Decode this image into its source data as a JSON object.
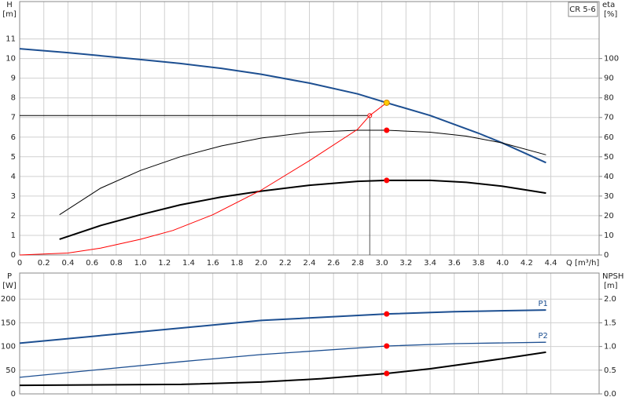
{
  "chart_data": [
    {
      "type": "line",
      "y_label": "H",
      "y_unit": "[m]",
      "y2_label": "eta",
      "y2_unit": "[%]",
      "x_label": "Q [m³/h]",
      "model": "CR 5-6",
      "xlim": [
        0,
        4.8
      ],
      "ylim": [
        0,
        12.9
      ],
      "y2lim": [
        0,
        129
      ],
      "xticks": [
        0,
        0.2,
        0.4,
        0.6,
        0.8,
        {
          "value": 1,
          "label": "1.0"
        },
        1.2,
        1.4,
        1.6,
        1.8,
        {
          "value": 2,
          "label": "2.0"
        },
        2.2,
        2.4,
        2.6,
        2.8,
        {
          "value": 3,
          "label": "3.0"
        },
        3.2,
        3.4,
        3.6,
        3.8,
        {
          "value": 4,
          "label": "4.0"
        },
        4.2,
        4.4
      ],
      "show_xtick_labels": true,
      "yticks": [
        0,
        1,
        2,
        3,
        4,
        5,
        6,
        7,
        8,
        9,
        10,
        11
      ],
      "y2ticks": [
        0,
        10,
        20,
        30,
        40,
        50,
        60,
        70,
        80,
        90,
        100
      ],
      "grid": true,
      "series": [
        {
          "color": "#1d4f91",
          "width": 2,
          "x": [
            0,
            0.4,
            1.0,
            1.33,
            1.67,
            2.0,
            2.4,
            2.8,
            3.04,
            3.4,
            3.8,
            4.0,
            4.36
          ],
          "values": [
            10.5,
            10.3,
            9.95,
            9.75,
            9.5,
            9.2,
            8.75,
            8.2,
            7.75,
            7.1,
            6.2,
            5.7,
            4.7
          ]
        },
        {
          "color": "#000000",
          "width": 1,
          "axis": "y2",
          "x": [
            0.33,
            0.67,
            1.0,
            1.33,
            1.67,
            2.0,
            2.4,
            2.8,
            3.04,
            3.4,
            3.7,
            4.0,
            4.36
          ],
          "values": [
            20.5,
            34,
            43,
            50,
            55.5,
            59.5,
            62.5,
            63.5,
            63.5,
            62.5,
            60.5,
            57,
            51
          ]
        },
        {
          "color": "#000000",
          "width": 2,
          "axis": "y2",
          "x": [
            0.33,
            0.67,
            1.0,
            1.33,
            1.67,
            2.0,
            2.4,
            2.8,
            3.04,
            3.4,
            3.7,
            4.0,
            4.36
          ],
          "values": [
            8,
            15,
            20.5,
            25.5,
            29.5,
            32.5,
            35.5,
            37.5,
            38,
            38,
            37,
            35,
            31.5
          ]
        },
        {
          "color": "#ff0000",
          "width": 1,
          "x": [
            0,
            0.4,
            0.67,
            1.0,
            1.27,
            1.6,
            2.0,
            2.4,
            2.8,
            2.9,
            3.04
          ],
          "values": [
            0,
            0.1,
            0.35,
            0.8,
            1.25,
            2.05,
            3.3,
            4.8,
            6.4,
            7.1,
            7.75
          ]
        }
      ],
      "duty_point": {
        "x": 2.9,
        "value": 7.1
      },
      "points": [
        {
          "x": 3.04,
          "value": 7.75,
          "color": "#ffcc00"
        },
        {
          "x": 3.04,
          "value": 63.5,
          "axis": "y2",
          "color": "#ff0000"
        },
        {
          "x": 3.04,
          "value": 38,
          "axis": "y2",
          "color": "#ff0000"
        }
      ]
    },
    {
      "type": "line",
      "y_label": "P",
      "y_unit": "[W]",
      "y2_label": "NPSH",
      "y2_unit": "[m]",
      "xlim": [
        0,
        4.8
      ],
      "ylim": [
        0,
        255
      ],
      "y2lim": [
        0,
        2.55
      ],
      "xticks": [
        0,
        0.2,
        0.4,
        0.6,
        0.8,
        1,
        1.2,
        1.4,
        1.6,
        1.8,
        2,
        2.2,
        2.4,
        2.6,
        2.8,
        3,
        3.2,
        3.4,
        3.6,
        3.8,
        4,
        4.2,
        4.4
      ],
      "show_xtick_labels": false,
      "yticks": [
        0,
        50,
        100,
        150,
        200
      ],
      "y2ticks": [
        {
          "value": 0,
          "label": "0.0"
        },
        0.5,
        {
          "value": 1,
          "label": "1.0"
        },
        1.5,
        {
          "value": 2,
          "label": "2.0"
        }
      ],
      "grid": true,
      "series": [
        {
          "name": "P1",
          "color": "#1d4f91",
          "width": 2,
          "x": [
            0,
            1.34,
            2.0,
            3.04,
            3.6,
            4.36
          ],
          "values": [
            107,
            139,
            155,
            168.6,
            173.5,
            177
          ]
        },
        {
          "name": "P2",
          "color": "#1d4f91",
          "width": 1.3,
          "x": [
            0,
            1.34,
            2.0,
            3.04,
            3.6,
            4.36
          ],
          "values": [
            35,
            68,
            83,
            101,
            106,
            109
          ]
        },
        {
          "color": "#000000",
          "width": 2,
          "axis": "y2",
          "x": [
            0,
            1.34,
            2.0,
            2.5,
            3.04,
            3.4,
            3.8,
            4.1,
            4.36
          ],
          "values": [
            0.18,
            0.2,
            0.25,
            0.32,
            0.43,
            0.53,
            0.67,
            0.78,
            0.88
          ]
        }
      ],
      "points": [
        {
          "x": 3.04,
          "value": 168.6,
          "color": "#ff0000"
        },
        {
          "x": 3.04,
          "value": 101,
          "color": "#ff0000"
        },
        {
          "x": 3.04,
          "value": 0.43,
          "axis": "y2",
          "color": "#ff0000"
        }
      ]
    }
  ]
}
